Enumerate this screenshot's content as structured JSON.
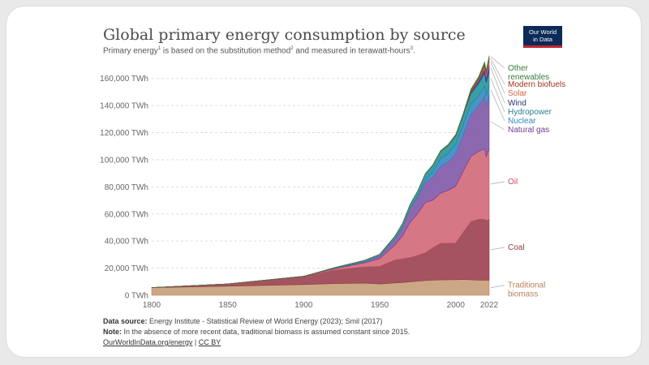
{
  "header": {
    "title": "Global primary energy consumption by source",
    "subtitle_parts": [
      "Primary energy",
      "1",
      " is based on the substitution method",
      "2",
      " and measured in terawatt-hours",
      "3",
      "."
    ],
    "logo_line1": "Our World",
    "logo_line2": "in Data"
  },
  "footer": {
    "source_label": "Data source:",
    "source_text": " Energy Institute - Statistical Review of World Energy (2023); Smil (2017)",
    "note_label": "Note:",
    "note_text": " In the absence of more recent data, traditional biomass is assumed constant since 2015.",
    "link1": "OurWorldInData.org/energy",
    "separator": " | ",
    "link2": "CC BY"
  },
  "chart_data": {
    "type": "area",
    "stacked": true,
    "title": "Global primary energy consumption by source",
    "xlabel": "",
    "ylabel": "",
    "unit": "TWh",
    "xlim": [
      1800,
      2022
    ],
    "ylim": [
      0,
      170000
    ],
    "x_ticks": [
      "1800",
      "1850",
      "1900",
      "1950",
      "2000",
      "2022"
    ],
    "y_ticks": [
      "0 TWh",
      "20,000 TWh",
      "40,000 TWh",
      "60,000 TWh",
      "80,000 TWh",
      "100,000 TWh",
      "120,000 TWh",
      "140,000 TWh",
      "160,000 TWh"
    ],
    "y_tick_values": [
      0,
      20000,
      40000,
      60000,
      80000,
      100000,
      120000,
      140000,
      160000
    ],
    "years": [
      1800,
      1850,
      1900,
      1920,
      1940,
      1950,
      1960,
      1965,
      1970,
      1975,
      1980,
      1985,
      1990,
      1995,
      2000,
      2005,
      2010,
      2015,
      2019,
      2020,
      2022
    ],
    "series": [
      {
        "name": "Traditional biomass",
        "color": "#b5835a",
        "fill": "#c9a27e",
        "values": [
          5600,
          6700,
          7900,
          8600,
          8900,
          8300,
          9100,
          9400,
          9900,
          10400,
          10900,
          11200,
          11300,
          11400,
          11500,
          11600,
          11400,
          11100,
          11100,
          11100,
          11100
        ]
      },
      {
        "name": "Coal",
        "color": "#8a3b48",
        "fill": "#a04a58",
        "values": [
          100,
          1600,
          5700,
          10000,
          12000,
          13000,
          17000,
          17500,
          18000,
          19000,
          20500,
          24000,
          27000,
          27000,
          27000,
          35000,
          43000,
          45000,
          45000,
          44000,
          45000
        ]
      },
      {
        "name": "Oil",
        "color": "#c9505f",
        "fill": "#d4707f",
        "values": [
          0,
          0,
          200,
          1000,
          3000,
          5800,
          11000,
          17000,
          26000,
          31000,
          37000,
          35000,
          37000,
          39000,
          42000,
          45000,
          48000,
          50000,
          52000,
          47000,
          52000
        ]
      },
      {
        "name": "Natural gas",
        "color": "#6a3d8e",
        "fill": "#8660ac",
        "values": [
          0,
          0,
          100,
          200,
          900,
          2100,
          4500,
          6500,
          10000,
          12000,
          15000,
          17000,
          20000,
          21000,
          24000,
          27000,
          31000,
          34000,
          39000,
          38000,
          40000
        ]
      },
      {
        "name": "Nuclear",
        "color": "#2e86c1",
        "fill": "#3d8fc6",
        "values": [
          0,
          0,
          0,
          0,
          0,
          0,
          0,
          100,
          200,
          1000,
          2000,
          4000,
          5500,
          6300,
          7000,
          7500,
          7500,
          7000,
          7200,
          7000,
          6900
        ]
      },
      {
        "name": "Hydropower",
        "color": "#2a7f8a",
        "fill": "#2e9a9e",
        "values": [
          0,
          0,
          100,
          500,
          1000,
          1000,
          2000,
          2500,
          3000,
          3500,
          4200,
          4800,
          5300,
          5800,
          6200,
          6900,
          8200,
          9100,
          9800,
          10000,
          10000
        ]
      },
      {
        "name": "Wind",
        "color": "#2f2f7a",
        "fill": "#4a3f9a",
        "values": [
          0,
          0,
          0,
          0,
          0,
          0,
          0,
          0,
          0,
          0,
          0,
          0,
          0,
          100,
          100,
          300,
          900,
          2000,
          3500,
          4000,
          5500
        ]
      },
      {
        "name": "Solar",
        "color": "#d9634a",
        "fill": "#e07a5f",
        "values": [
          0,
          0,
          0,
          0,
          0,
          0,
          0,
          0,
          0,
          0,
          0,
          0,
          0,
          0,
          0,
          0,
          100,
          600,
          1800,
          2200,
          3300
        ]
      },
      {
        "name": "Modern biofuels",
        "color": "#a0341e",
        "fill": "#b04a33",
        "values": [
          0,
          0,
          0,
          0,
          0,
          0,
          0,
          0,
          0,
          0,
          100,
          200,
          200,
          200,
          300,
          400,
          1200,
          1400,
          1500,
          1400,
          1500
        ]
      },
      {
        "name": "Other renewables",
        "color": "#3a7a3a",
        "fill": "#4d8b3b",
        "values": [
          0,
          0,
          0,
          0,
          0,
          0,
          0,
          0,
          0,
          100,
          200,
          300,
          400,
          500,
          600,
          700,
          900,
          1100,
          1400,
          1400,
          1500
        ]
      }
    ],
    "legend_labels": [
      {
        "series": "Other renewables",
        "lines": [
          "Other",
          "renewables"
        ],
        "color": "#3a7a3a"
      },
      {
        "series": "Modern biofuels",
        "lines": [
          "Modern biofuels"
        ],
        "color": "#a0341e"
      },
      {
        "series": "Solar",
        "lines": [
          "Solar"
        ],
        "color": "#d9634a"
      },
      {
        "series": "Wind",
        "lines": [
          "Wind"
        ],
        "color": "#2f2f7a"
      },
      {
        "series": "Hydropower",
        "lines": [
          "Hydropower"
        ],
        "color": "#2a7f8a"
      },
      {
        "series": "Nuclear",
        "lines": [
          "Nuclear"
        ],
        "color": "#2e86c1"
      },
      {
        "series": "Natural gas",
        "lines": [
          "Natural gas"
        ],
        "color": "#6a3d8e"
      },
      {
        "series": "Oil",
        "lines": [
          "Oil"
        ],
        "color": "#c9505f"
      },
      {
        "series": "Coal",
        "lines": [
          "Coal"
        ],
        "color": "#8a3b48"
      },
      {
        "series": "Traditional biomass",
        "lines": [
          "Traditional",
          "biomass"
        ],
        "color": "#b5835a"
      }
    ],
    "grid": true,
    "legend": "right"
  }
}
